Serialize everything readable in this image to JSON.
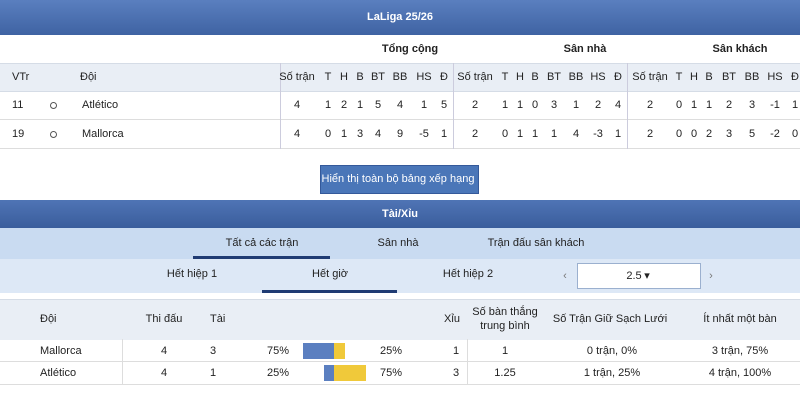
{
  "standings": {
    "title": "LaLiga 25/26",
    "groups": [
      "Tổng cộng",
      "Sân nhà",
      "Sân khách"
    ],
    "columns": {
      "rank": "VTr",
      "team": "Đội",
      "stats": [
        "Số trận",
        "T",
        "H",
        "B",
        "BT",
        "BB",
        "HS",
        "Đ"
      ]
    },
    "rows": [
      {
        "rank": "11",
        "team": "Atlético",
        "stats": [
          [
            4,
            1,
            2,
            1,
            5,
            4,
            1,
            5
          ],
          [
            2,
            1,
            1,
            0,
            3,
            1,
            2,
            4
          ],
          [
            2,
            0,
            1,
            1,
            2,
            3,
            -1,
            1
          ]
        ]
      },
      {
        "rank": "19",
        "team": "Mallorca",
        "stats": [
          [
            4,
            0,
            1,
            3,
            4,
            9,
            -5,
            1
          ],
          [
            2,
            0,
            1,
            1,
            1,
            4,
            -3,
            1
          ],
          [
            2,
            0,
            0,
            2,
            3,
            5,
            -2,
            0
          ]
        ]
      }
    ]
  },
  "button": "Hiển thị toàn bộ bảng xếp hạng",
  "over_under": {
    "title": "Tài/Xỉu",
    "tabs": [
      "Tất cả các trận",
      "Sân nhà",
      "Trận đấu sân khách"
    ],
    "periods": [
      "Hết hiệp 1",
      "Hết giờ",
      "Hết hiệp 2"
    ],
    "line": "2.5",
    "columns": {
      "team": "Đội",
      "played": "Thi đấu",
      "over": "Tài",
      "under": "Xỉu",
      "avg_goals": "Số bàn thắng trung bình",
      "clean_sheets": "Số Trận Giữ Sạch Lưới",
      "scored": "Ít nhất một bàn"
    },
    "rows": [
      {
        "team": "Mallorca",
        "played": 4,
        "over": 3,
        "over_pct": {
          "value": 75,
          "label": "75%"
        },
        "under_pct": {
          "value": 25,
          "label": "25%"
        },
        "under": 1,
        "avg_goals": 1,
        "clean_sheets": "0 trận, 0%",
        "scored": "3 trận, 75%"
      },
      {
        "team": "Atlético",
        "played": 4,
        "over": 1,
        "over_pct": {
          "value": 25,
          "label": "25%"
        },
        "under_pct": {
          "value": 75,
          "label": "75%"
        },
        "under": 3,
        "avg_goals": 1.25,
        "clean_sheets": "1 trận, 25%",
        "scored": "4 trận, 100%"
      }
    ]
  }
}
